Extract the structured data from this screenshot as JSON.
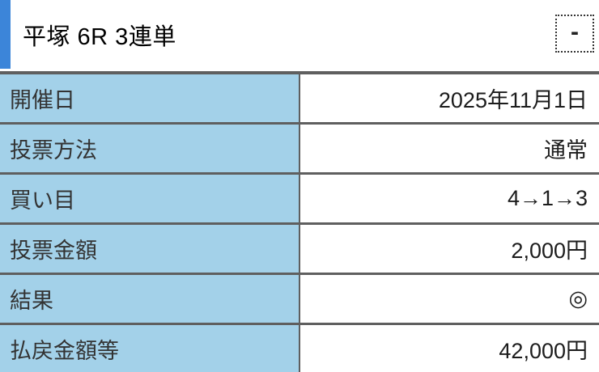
{
  "header": {
    "title": "平塚 6R 3連単",
    "collapse_label": "-"
  },
  "colors": {
    "accent_blue": "#3c85d9",
    "label_cell_bg": "#a3d1e9",
    "divider_gray": "#5f5f5f"
  },
  "table": {
    "rows": [
      {
        "label": "開催日",
        "value": "2025年11月1日"
      },
      {
        "label": "投票方法",
        "value": "通常"
      },
      {
        "label": "買い目",
        "value": "4→1→3"
      },
      {
        "label": "投票金額",
        "value": "2,000円"
      },
      {
        "label": "結果",
        "value": "◎"
      },
      {
        "label": "払戻金額等",
        "value": "42,000円"
      }
    ]
  }
}
